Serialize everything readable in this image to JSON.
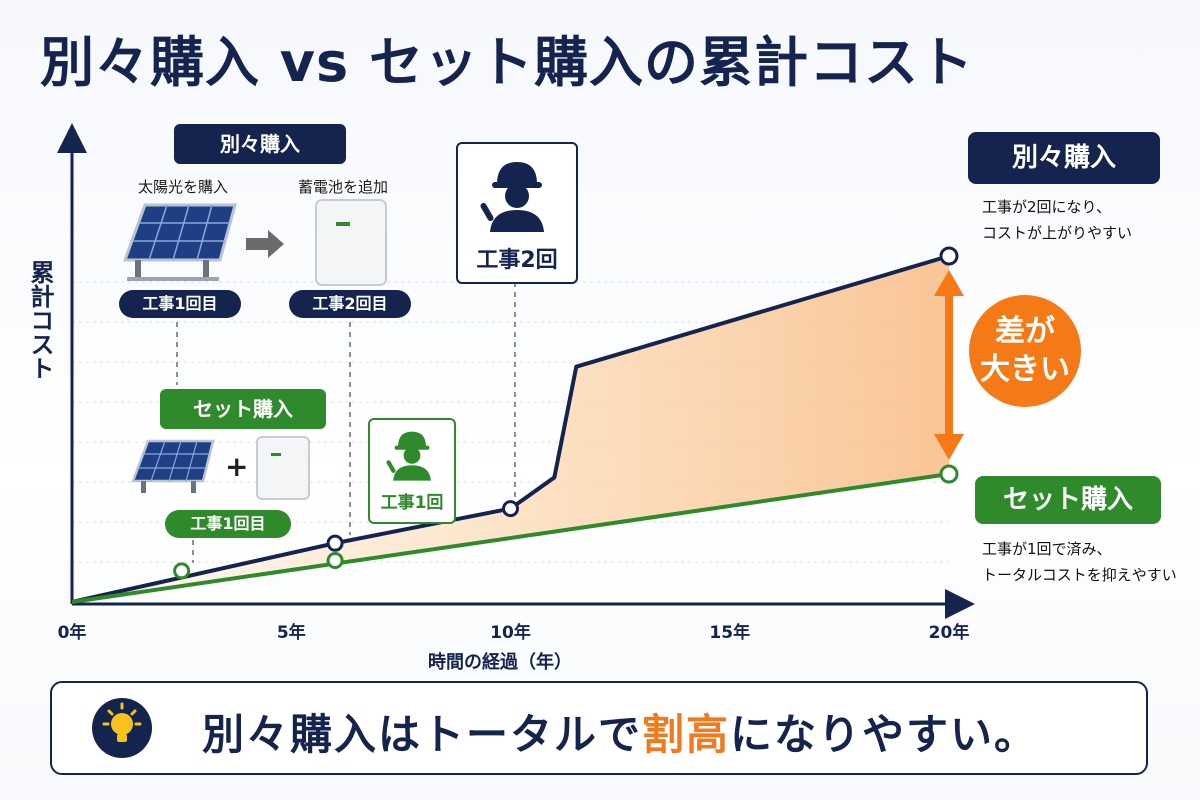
{
  "title": "別々購入 vs セット購入の累計コスト",
  "left_panel": {
    "separate_header": "別々購入",
    "solar_caption": "太陽光を購入",
    "battery_caption": "蓄電池を追加",
    "work1_badge": "工事1回目",
    "work2_badge": "工事2回目",
    "set_header": "セット購入",
    "plus": "+",
    "set_work_badge": "工事1回目"
  },
  "callouts": {
    "work_twice": "工事2回",
    "work_once": "工事1回"
  },
  "right_panel": {
    "separate_label": "別々購入",
    "separate_note_1": "工事が2回になり、",
    "separate_note_2": "コストが上がりやすい",
    "diff_line1": "差が",
    "diff_line2": "大きい",
    "set_label": "セット購入",
    "set_note_1": "工事が1回で済み、",
    "set_note_2": "トータルコストを抑えやすい"
  },
  "bottom_message": {
    "before": "別々購入はトータルで",
    "accent": "割高",
    "after": "になりやすい。"
  },
  "colors": {
    "navy": "#15244f",
    "green": "#2f8a2c",
    "orange": "#f57a17",
    "fill": "#fde3c8"
  },
  "chart_data": {
    "type": "line",
    "title": "別々購入 vs セット購入の累計コスト",
    "xlabel": "時間の経過（年）",
    "ylabel": "累計コスト",
    "x_ticks": [
      0,
      5,
      10,
      15,
      20
    ],
    "x_tick_labels": [
      "0年",
      "5年",
      "10年",
      "15年",
      "20年"
    ],
    "xlim": [
      0,
      20.5
    ],
    "y_ticks": false,
    "ylim": [
      0,
      100
    ],
    "grid": true,
    "series": [
      {
        "name": "別々購入",
        "color": "#15244f",
        "points": [
          [
            0,
            0
          ],
          [
            6,
            17
          ],
          [
            10,
            27
          ],
          [
            11,
            36
          ],
          [
            11.5,
            68
          ],
          [
            20,
            100
          ]
        ],
        "markers": [
          [
            6,
            17
          ],
          [
            10,
            27
          ],
          [
            20,
            100
          ]
        ]
      },
      {
        "name": "セット購入",
        "color": "#2f8a2c",
        "points": [
          [
            0,
            0
          ],
          [
            20,
            37
          ]
        ],
        "markers": [
          [
            2.5,
            9
          ],
          [
            6,
            12
          ],
          [
            20,
            37
          ]
        ]
      }
    ],
    "filled_between": true
  }
}
